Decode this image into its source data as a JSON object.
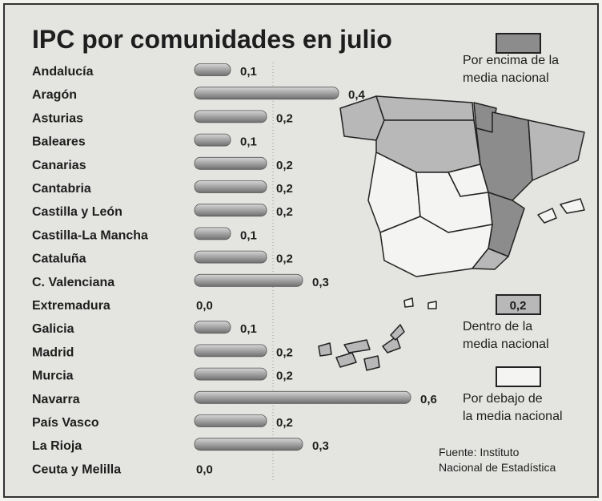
{
  "chart_data": {
    "type": "bar",
    "orientation": "horizontal",
    "title": "IPC por comunidades en julio",
    "categories": [
      "Andalucía",
      "Aragón",
      "Asturias",
      "Baleares",
      "Canarias",
      "Cantabria",
      "Castilla y León",
      "Castilla-La Mancha",
      "Cataluña",
      "C. Valenciana",
      "Extremadura",
      "Galicia",
      "Madrid",
      "Murcia",
      "Navarra",
      "País Vasco",
      "La Rioja",
      "Ceuta y Melilla"
    ],
    "values": [
      0.1,
      0.4,
      0.2,
      0.1,
      0.2,
      0.2,
      0.2,
      0.1,
      0.2,
      0.3,
      0.0,
      0.1,
      0.2,
      0.2,
      0.6,
      0.2,
      0.3,
      0.0
    ],
    "value_labels": [
      "0,1",
      "0,4",
      "0,2",
      "0,1",
      "0,2",
      "0,2",
      "0,2",
      "0,1",
      "0,2",
      "0,3",
      "0,0",
      "0,1",
      "0,2",
      "0,2",
      "0,6",
      "0,2",
      "0,3",
      "0,0"
    ],
    "color": "#a9a9a9",
    "legend": [
      {
        "lines": [
          "Por encima de la",
          "media nacional"
        ],
        "color": "#8c8c8c"
      },
      {
        "lines": [
          "Dentro de la",
          "media nacional"
        ],
        "color": "#b8b8b8",
        "swatch_label": "0,2"
      },
      {
        "lines": [
          "Por debajo de",
          "la media nacional"
        ],
        "color": "#f4f4f2"
      }
    ],
    "source": [
      "Fuente: Instituto",
      "Nacional de Estadística"
    ]
  }
}
